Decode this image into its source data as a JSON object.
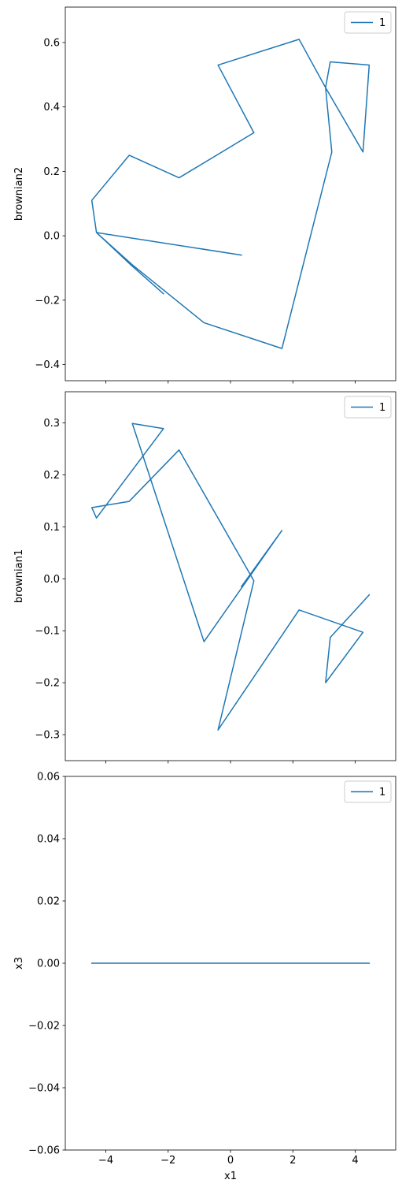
{
  "chart_data": [
    {
      "type": "line",
      "ylabel": "brownian2",
      "xlim": [
        -5.3,
        5.3
      ],
      "ylim": [
        -0.45,
        0.71
      ],
      "xticks": [
        -4,
        -2,
        0,
        2,
        4
      ],
      "xtick_labels": [
        "",
        "",
        "",
        "",
        ""
      ],
      "yticks": [
        -0.4,
        -0.2,
        0.0,
        0.2,
        0.4,
        0.6
      ],
      "ytick_labels": [
        "−0.4",
        "−0.2",
        "0.0",
        "0.2",
        "0.4",
        "0.6"
      ],
      "legend_position": "top-right",
      "series": [
        {
          "name": "1",
          "color": "#1f77b4",
          "x": [
            -2.15,
            -3.2,
            -4.3,
            -4.45,
            -3.25,
            -1.65,
            0.75,
            -0.4,
            2.2,
            3.05,
            3.2,
            4.45,
            4.25,
            3.05,
            3.25,
            1.65,
            -0.85,
            -3.15,
            -4.3,
            0.35
          ],
          "y": [
            -0.18,
            -0.09,
            0.01,
            0.11,
            0.25,
            0.18,
            0.32,
            0.53,
            0.61,
            0.46,
            0.54,
            0.53,
            0.26,
            0.46,
            0.26,
            -0.35,
            -0.27,
            -0.09,
            0.01,
            -0.06
          ]
        }
      ]
    },
    {
      "type": "line",
      "ylabel": "brownian1",
      "xlim": [
        -5.3,
        5.3
      ],
      "ylim": [
        -0.35,
        0.36
      ],
      "xticks": [
        -4,
        -2,
        0,
        2,
        4
      ],
      "xtick_labels": [
        "",
        "",
        "",
        "",
        ""
      ],
      "yticks": [
        -0.3,
        -0.2,
        -0.1,
        0.0,
        0.1,
        0.2,
        0.3
      ],
      "ytick_labels": [
        "−0.3",
        "−0.2",
        "−0.1",
        "0.0",
        "0.1",
        "0.2",
        "0.3"
      ],
      "legend_position": "top-right",
      "series": [
        {
          "name": "1",
          "color": "#1f77b4",
          "x": [
            0.35,
            1.65,
            -0.85,
            -3.15,
            -2.15,
            -4.3,
            -4.45,
            -3.25,
            -1.65,
            0.75,
            -0.4,
            2.2,
            4.25,
            3.05,
            3.2,
            4.45
          ],
          "y": [
            -0.015,
            0.093,
            -0.121,
            0.299,
            0.289,
            0.117,
            0.137,
            0.149,
            0.248,
            -0.004,
            -0.291,
            -0.06,
            -0.103,
            -0.2,
            -0.113,
            -0.031
          ]
        }
      ]
    },
    {
      "type": "line",
      "ylabel": "x3",
      "xlabel": "x1",
      "xlim": [
        -5.3,
        5.3
      ],
      "ylim": [
        -0.06,
        0.06
      ],
      "xticks": [
        -4,
        -2,
        0,
        2,
        4
      ],
      "xtick_labels": [
        "−4",
        "−2",
        "0",
        "2",
        "4"
      ],
      "yticks": [
        -0.06,
        -0.04,
        -0.02,
        0.0,
        0.02,
        0.04,
        0.06
      ],
      "ytick_labels": [
        "−0.06",
        "−0.04",
        "−0.02",
        "0.00",
        "0.02",
        "0.04",
        "0.06"
      ],
      "legend_position": "top-right",
      "series": [
        {
          "name": "1",
          "color": "#1f77b4",
          "x": [
            -4.45,
            4.45
          ],
          "y": [
            0.0,
            0.0
          ]
        }
      ]
    }
  ]
}
